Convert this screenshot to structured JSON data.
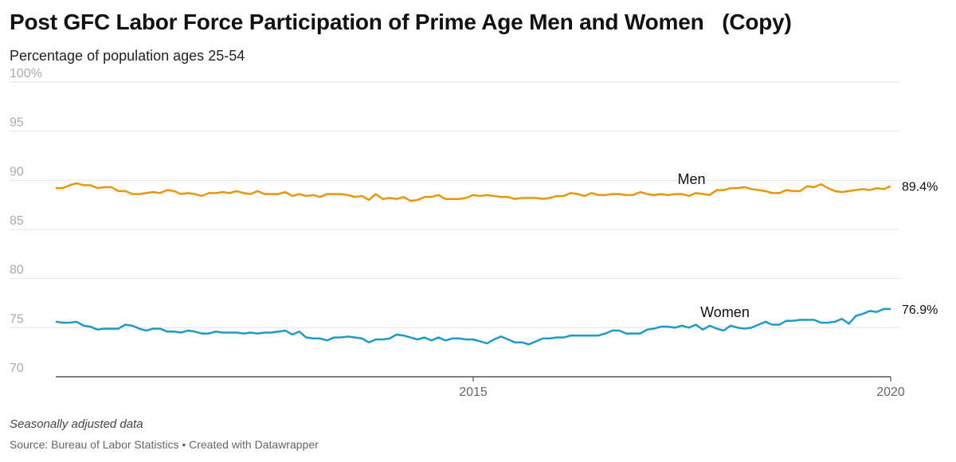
{
  "title": "Post GFC Labor Force Participation of Prime Age Men and Women   (Copy)",
  "subtitle": "Percentage of population ages 25-54",
  "note": "Seasonally adjusted data",
  "source": "Source: Bureau of Labor Statistics • Created with Datawrapper",
  "chart_data": {
    "type": "line",
    "ylim": [
      70,
      100
    ],
    "y_ticks": [
      "100%",
      "95",
      "90",
      "85",
      "80",
      "75",
      "70"
    ],
    "x_ticks": [
      "2015",
      "2020"
    ],
    "grid": true,
    "colors": {
      "Men": "#E8960E",
      "Women": "#1D9AC6",
      "grid": "#e4e4e4",
      "axis": "#333333"
    },
    "series": [
      {
        "name": "Men",
        "end_label": "89.4%",
        "values": [
          89.2,
          89.2,
          89.5,
          89.7,
          89.5,
          89.5,
          89.2,
          89.3,
          89.3,
          88.9,
          88.9,
          88.6,
          88.6,
          88.7,
          88.8,
          88.7,
          89.0,
          88.9,
          88.6,
          88.7,
          88.6,
          88.4,
          88.7,
          88.7,
          88.8,
          88.7,
          88.9,
          88.7,
          88.6,
          88.9,
          88.6,
          88.6,
          88.6,
          88.8,
          88.4,
          88.6,
          88.4,
          88.5,
          88.3,
          88.6,
          88.6,
          88.6,
          88.5,
          88.3,
          88.4,
          88.0,
          88.6,
          88.1,
          88.2,
          88.1,
          88.3,
          87.9,
          88.0,
          88.3,
          88.3,
          88.5,
          88.1,
          88.1,
          88.1,
          88.2,
          88.5,
          88.4,
          88.5,
          88.4,
          88.3,
          88.3,
          88.1,
          88.2,
          88.2,
          88.2,
          88.1,
          88.2,
          88.4,
          88.4,
          88.7,
          88.6,
          88.4,
          88.7,
          88.5,
          88.5,
          88.6,
          88.6,
          88.5,
          88.5,
          88.8,
          88.6,
          88.5,
          88.6,
          88.5,
          88.6,
          88.6,
          88.4,
          88.7,
          88.6,
          88.5,
          89.0,
          89.0,
          89.2,
          89.2,
          89.3,
          89.1,
          89.0,
          88.9,
          88.7,
          88.7,
          89.0,
          88.9,
          88.9,
          89.4,
          89.3,
          89.6,
          89.2,
          88.9,
          88.8,
          88.9,
          89.0,
          89.1,
          89.0,
          89.2,
          89.1,
          89.4
        ]
      },
      {
        "name": "Women",
        "end_label": "76.9%",
        "values": [
          75.6,
          75.5,
          75.5,
          75.6,
          75.2,
          75.1,
          74.8,
          74.9,
          74.9,
          74.9,
          75.3,
          75.2,
          74.9,
          74.7,
          74.9,
          74.9,
          74.6,
          74.6,
          74.5,
          74.7,
          74.6,
          74.4,
          74.4,
          74.6,
          74.5,
          74.5,
          74.5,
          74.4,
          74.5,
          74.4,
          74.5,
          74.5,
          74.6,
          74.7,
          74.3,
          74.6,
          74.0,
          73.9,
          73.9,
          73.7,
          74.0,
          74.0,
          74.1,
          74.0,
          73.9,
          73.5,
          73.8,
          73.8,
          73.9,
          74.3,
          74.2,
          74.0,
          73.8,
          74.0,
          73.7,
          74.0,
          73.7,
          73.9,
          73.9,
          73.8,
          73.8,
          73.6,
          73.4,
          73.8,
          74.1,
          73.8,
          73.5,
          73.5,
          73.3,
          73.6,
          73.9,
          73.9,
          74.0,
          74.0,
          74.2,
          74.2,
          74.2,
          74.2,
          74.2,
          74.4,
          74.7,
          74.7,
          74.4,
          74.4,
          74.4,
          74.8,
          74.9,
          75.1,
          75.1,
          75.0,
          75.2,
          75.0,
          75.3,
          74.8,
          75.2,
          74.9,
          74.7,
          75.2,
          75.0,
          74.9,
          75.0,
          75.3,
          75.6,
          75.3,
          75.3,
          75.7,
          75.7,
          75.8,
          75.8,
          75.8,
          75.5,
          75.5,
          75.6,
          75.9,
          75.4,
          76.2,
          76.4,
          76.7,
          76.6,
          76.9,
          76.9
        ]
      }
    ]
  }
}
